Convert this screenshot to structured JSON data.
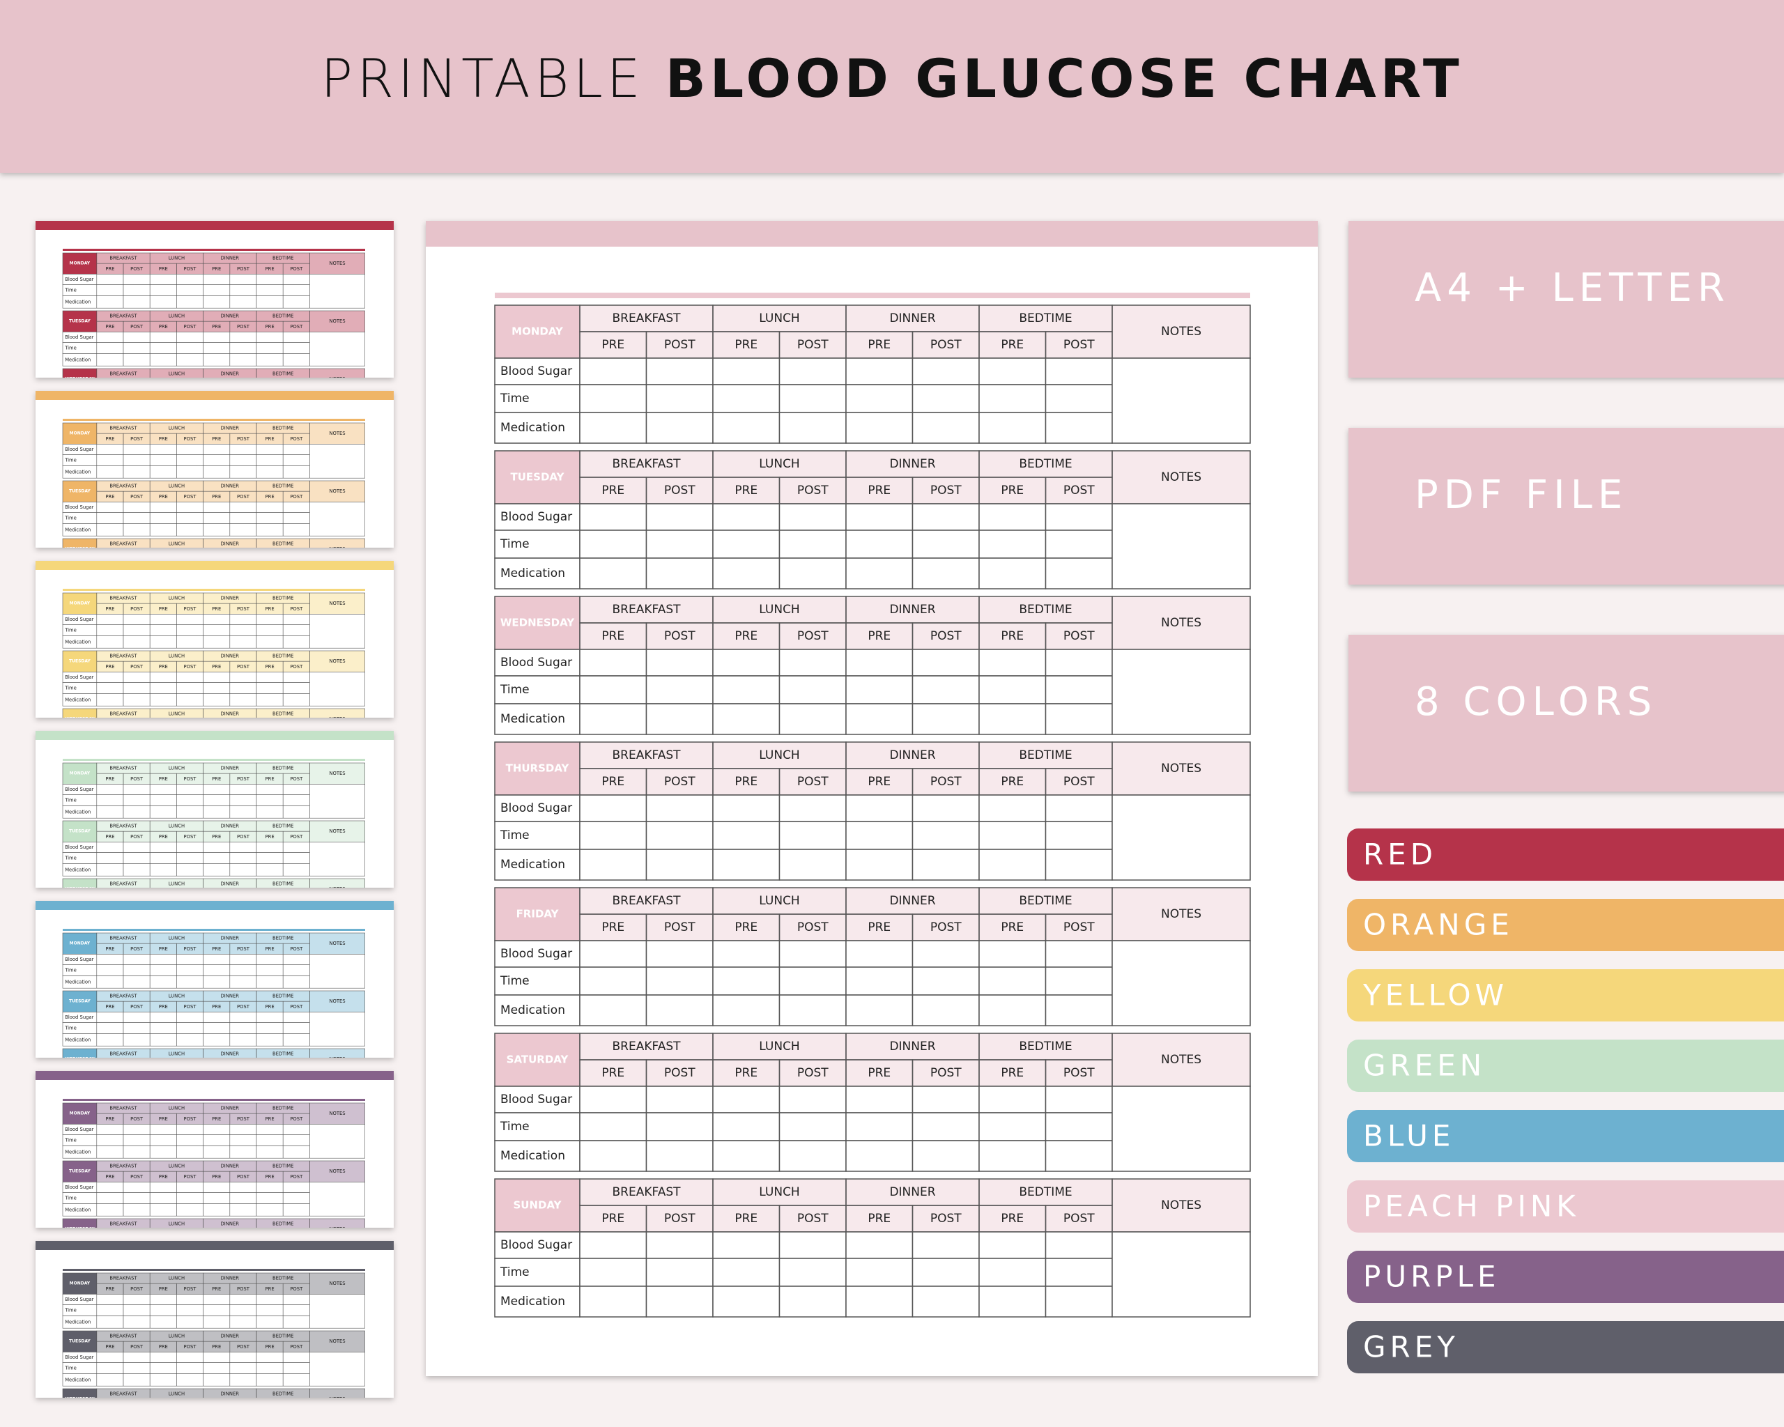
{
  "header": {
    "title_light": "PRINTABLE",
    "title_bold": "BLOOD GLUCOSE CHART"
  },
  "table": {
    "days": [
      "MONDAY",
      "TUESDAY",
      "WEDNESDAY",
      "THURSDAY",
      "FRIDAY",
      "SATURDAY",
      "SUNDAY"
    ],
    "meals": [
      "BREAKFAST",
      "LUNCH",
      "DINNER",
      "BEDTIME"
    ],
    "sub_columns": [
      "PRE",
      "POST"
    ],
    "notes": "NOTES",
    "row_labels": [
      "Blood Sugar",
      "Time",
      "Medication"
    ]
  },
  "badges": [
    "A4 + LETTER",
    "PDF FILE",
    "8 COLORS"
  ],
  "colors": [
    {
      "name": "RED",
      "color": "#b5334a"
    },
    {
      "name": "ORANGE",
      "color": "#efb567"
    },
    {
      "name": "YELLOW",
      "color": "#f5d77b"
    },
    {
      "name": "GREEN",
      "color": "#c4e2c8"
    },
    {
      "name": "BLUE",
      "color": "#6db1d0"
    },
    {
      "name": "PEACH PINK",
      "color": "#ecc8d0"
    },
    {
      "name": "PURPLE",
      "color": "#86628a"
    },
    {
      "name": "GREY",
      "color": "#5f5f6a"
    }
  ],
  "main_color_index": 5
}
